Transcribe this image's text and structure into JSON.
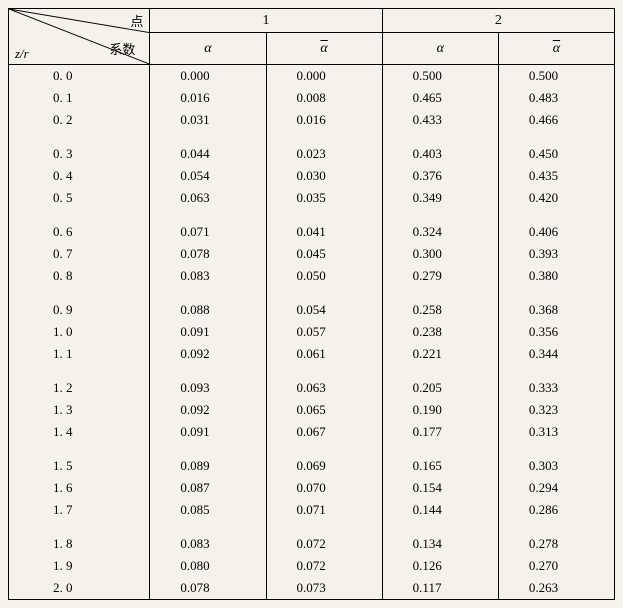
{
  "header": {
    "diag_top": "点",
    "diag_mid": "系数",
    "diag_bottom": "z/r",
    "group1": "1",
    "group2": "2",
    "sub_a": "α",
    "sub_abar": "α"
  },
  "style": {
    "background_color": "#f5f2ec",
    "border_color": "#000000",
    "font_family": "Times New Roman",
    "header_fontsize": 14,
    "data_fontsize": 13
  },
  "groups": [
    {
      "type": "data",
      "first": true,
      "rows": [
        {
          "zr": "0. 0",
          "a1": "0.000",
          "ab1": "0.000",
          "a2": "0.500",
          "ab2": "0.500"
        },
        {
          "zr": "0. 1",
          "a1": "0.016",
          "ab1": "0.008",
          "a2": "0.465",
          "ab2": "0.483"
        },
        {
          "zr": "0. 2",
          "a1": "0.031",
          "ab1": "0.016",
          "a2": "0.433",
          "ab2": "0.466"
        }
      ]
    },
    {
      "type": "spacer"
    },
    {
      "type": "data",
      "rows": [
        {
          "zr": "0. 3",
          "a1": "0.044",
          "ab1": "0.023",
          "a2": "0.403",
          "ab2": "0.450"
        },
        {
          "zr": "0. 4",
          "a1": "0.054",
          "ab1": "0.030",
          "a2": "0.376",
          "ab2": "0.435"
        },
        {
          "zr": "0. 5",
          "a1": "0.063",
          "ab1": "0.035",
          "a2": "0.349",
          "ab2": "0.420"
        }
      ]
    },
    {
      "type": "spacer"
    },
    {
      "type": "data",
      "rows": [
        {
          "zr": "0. 6",
          "a1": "0.071",
          "ab1": "0.041",
          "a2": "0.324",
          "ab2": "0.406"
        },
        {
          "zr": "0. 7",
          "a1": "0.078",
          "ab1": "0.045",
          "a2": "0.300",
          "ab2": "0.393"
        },
        {
          "zr": "0. 8",
          "a1": "0.083",
          "ab1": "0.050",
          "a2": "0.279",
          "ab2": "0.380"
        }
      ]
    },
    {
      "type": "spacer"
    },
    {
      "type": "data",
      "rows": [
        {
          "zr": "0. 9",
          "a1": "0.088",
          "ab1": "0.054",
          "a2": "0.258",
          "ab2": "0.368"
        },
        {
          "zr": "1. 0",
          "a1": "0.091",
          "ab1": "0.057",
          "a2": "0.238",
          "ab2": "0.356"
        },
        {
          "zr": "1. 1",
          "a1": "0.092",
          "ab1": "0.061",
          "a2": "0.221",
          "ab2": "0.344"
        }
      ]
    },
    {
      "type": "spacer-small"
    },
    {
      "type": "data",
      "rows": [
        {
          "zr": "1. 2",
          "a1": "0.093",
          "ab1": "0.063",
          "a2": "0.205",
          "ab2": "0.333"
        },
        {
          "zr": "1. 3",
          "a1": "0.092",
          "ab1": "0.065",
          "a2": "0.190",
          "ab2": "0.323"
        },
        {
          "zr": "1. 4",
          "a1": "0.091",
          "ab1": "0.067",
          "a2": "0.177",
          "ab2": "0.313"
        }
      ]
    },
    {
      "type": "spacer"
    },
    {
      "type": "data",
      "rows": [
        {
          "zr": "1. 5",
          "a1": "0.089",
          "ab1": "0.069",
          "a2": "0.165",
          "ab2": "0.303"
        },
        {
          "zr": "1. 6",
          "a1": "0.087",
          "ab1": "0.070",
          "a2": "0.154",
          "ab2": "0.294"
        },
        {
          "zr": "1. 7",
          "a1": "0.085",
          "ab1": "0.071",
          "a2": "0.144",
          "ab2": "0.286"
        }
      ]
    },
    {
      "type": "spacer"
    },
    {
      "type": "data",
      "last": true,
      "rows": [
        {
          "zr": "1. 8",
          "a1": "0.083",
          "ab1": "0.072",
          "a2": "0.134",
          "ab2": "0.278"
        },
        {
          "zr": "1. 9",
          "a1": "0.080",
          "ab1": "0.072",
          "a2": "0.126",
          "ab2": "0.270"
        },
        {
          "zr": "2. 0",
          "a1": "0.078",
          "ab1": "0.073",
          "a2": "0.117",
          "ab2": "0.263"
        }
      ]
    }
  ]
}
